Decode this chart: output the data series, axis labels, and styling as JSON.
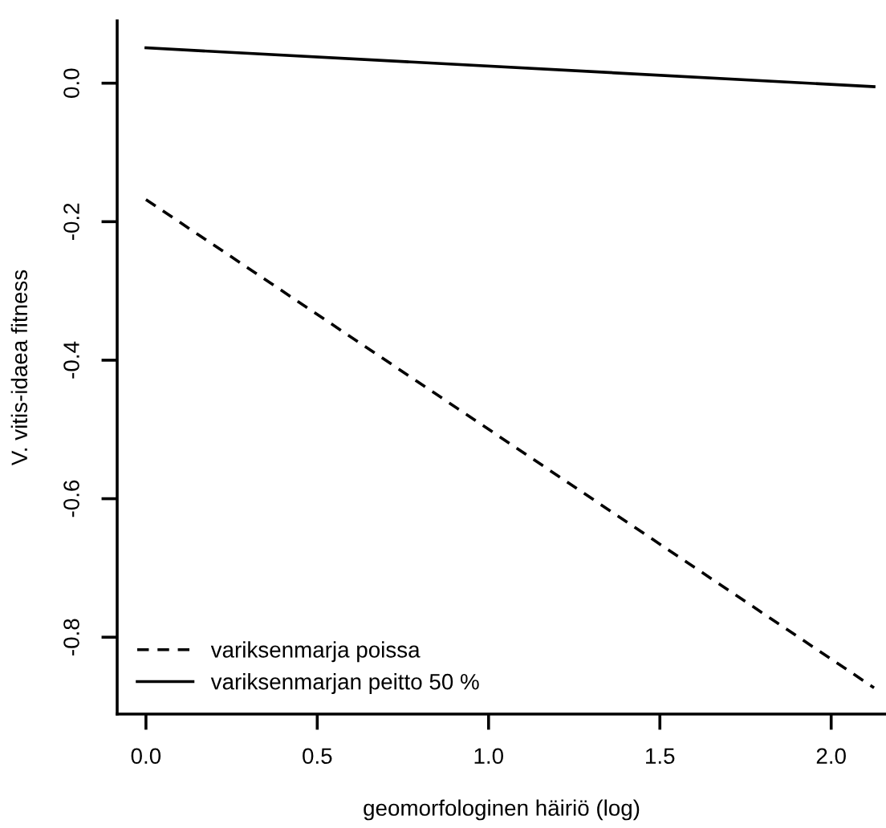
{
  "chart_data": {
    "type": "line",
    "xlabel": "geomorfologinen häiriö (log)",
    "ylabel": "V. vitis-idaea fitness",
    "x": [
      0,
      2.125
    ],
    "series": [
      {
        "name": "variksenmarja poissa",
        "color": "#000000",
        "values": [
          -0.168,
          -0.873
        ],
        "line_style": "dashed"
      },
      {
        "name": "variksenmarjan peitto 50 %",
        "color": "#000000",
        "values": [
          0.051,
          -0.005
        ],
        "line_style": "solid"
      }
    ],
    "xlim": [
      -0.084,
      2.16
    ],
    "ylim": [
      -0.911,
      0.09
    ],
    "xticks": [
      {
        "value": 0,
        "label": "0.0"
      },
      0.5,
      {
        "value": 1,
        "label": "1.0"
      },
      1.5,
      {
        "value": 2,
        "label": "2.0"
      }
    ],
    "yticks": [
      {
        "value": -0.8,
        "label": "-0.8"
      },
      {
        "value": -0.6,
        "label": "-0.6"
      },
      {
        "value": -0.4,
        "label": "-0.4"
      },
      {
        "value": -0.2,
        "label": "-0.2"
      },
      {
        "value": 0,
        "label": "0.0"
      }
    ],
    "grid": false,
    "legend": "bottom left",
    "marker": "none"
  }
}
